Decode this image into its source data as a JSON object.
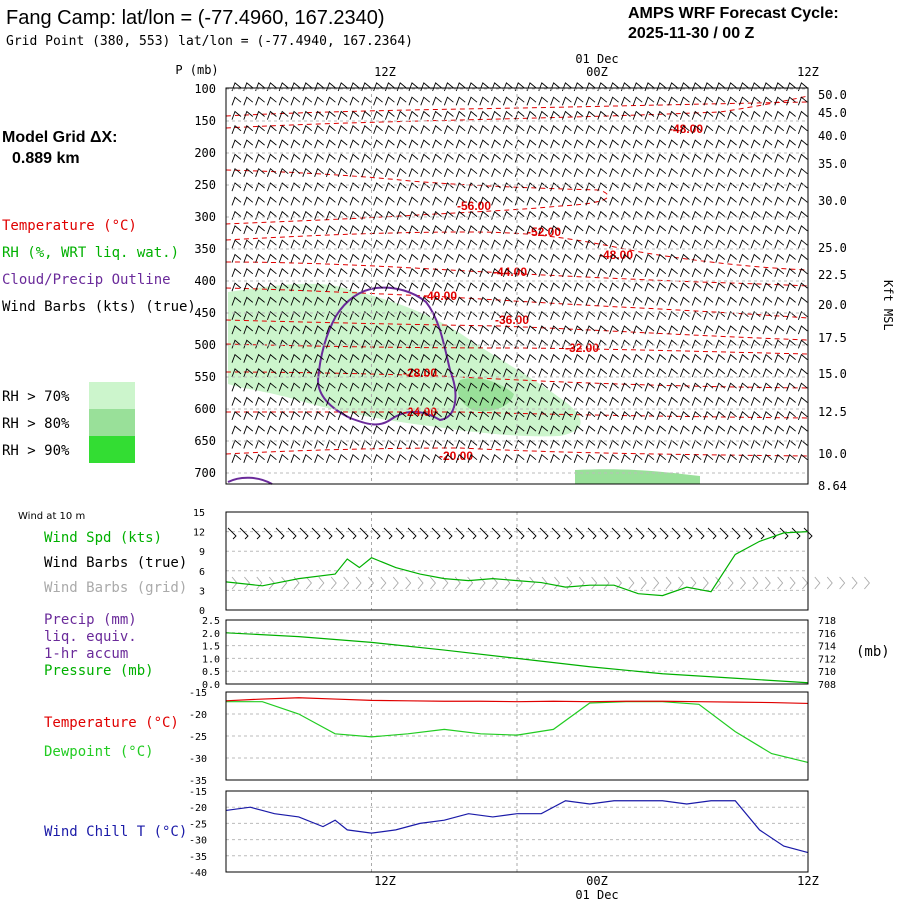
{
  "header": {
    "title": "Fang Camp:  lat/lon = (-77.4960, 167.2340)",
    "subtitle": "Grid Point (380, 553) lat/lon = (-77.4940, 167.2364)",
    "cycle_label": "AMPS WRF Forecast Cycle:",
    "cycle_value": "2025-11-30 / 00  Z",
    "grid_label": "Model Grid ΔX:",
    "grid_value": "0.889 km",
    "date_top": "01 Dec",
    "date_bottom": "01 Dec",
    "pressure_axis_label": "P (mb)",
    "height_axis_label": "Kft MSL"
  },
  "colors": {
    "temperature": "#e00000",
    "rh": "#00b000",
    "cloud": "#6a2a9a",
    "wind": "#000000",
    "wind_grid": "#aaaaaa",
    "precip": "#6a2a9a",
    "pressure": "#00b000",
    "dewpoint": "#22cc22",
    "windchill": "#1a1aa8",
    "rh70": "#ccf5cc",
    "rh80": "#99e099",
    "rh90": "#33dd33"
  },
  "legend": {
    "temperature": "Temperature (°C)",
    "rh": "RH (%, WRT liq. wat.)",
    "cloud": "Cloud/Precip Outline",
    "wind": "Wind Barbs (kts) (true)",
    "rh70": "RH > 70%",
    "rh80": "RH > 80%",
    "rh90": "RH > 90%"
  },
  "chart_data": [
    {
      "type": "line",
      "panel": "vertical cross-section (time-height)",
      "x_ticks": [
        "12Z",
        "00Z",
        "12Z"
      ],
      "pressure_ticks": [
        100,
        150,
        200,
        250,
        300,
        350,
        400,
        450,
        500,
        550,
        600,
        650,
        700
      ],
      "height_ticks": [
        "50.0",
        "45.0",
        "40.0",
        "35.0",
        "30.0",
        "25.0",
        "22.5",
        "20.0",
        "17.5",
        "15.0",
        "12.5",
        "10.0",
        "8.64"
      ],
      "temperature_contour_labels": [
        "-48.00",
        "-56.00",
        "-52.00",
        "-48.00",
        "-44.00",
        "-40.00",
        "-36.00",
        "-32.00",
        "-28.00",
        "-24.00",
        "-20.00"
      ]
    },
    {
      "type": "line",
      "title": "Wind at 10 m",
      "labels": {
        "speed": "Wind Spd (kts)",
        "barbs": "Wind Barbs (true)",
        "barbs_grid": "Wind Barbs (grid)"
      },
      "y_ticks": [
        "15",
        "12",
        "9",
        "6",
        "3",
        "0"
      ],
      "ylim": [
        0,
        15
      ],
      "x_hours": [
        0,
        3,
        6,
        9,
        10,
        11,
        12,
        14,
        16,
        18,
        20,
        22,
        24,
        26,
        28,
        30,
        32,
        34,
        36,
        38,
        40,
        42,
        44,
        46,
        48
      ],
      "series": [
        {
          "name": "Wind Spd (kts)",
          "values": [
            4.3,
            3.7,
            4.8,
            5.5,
            7.8,
            6.5,
            8.0,
            6.5,
            5.5,
            4.8,
            4.5,
            4.8,
            4.5,
            4.2,
            3.5,
            3.8,
            3.8,
            2.5,
            2.2,
            3.5,
            2.8,
            8.5,
            10.5,
            11.8,
            12.0
          ]
        }
      ]
    },
    {
      "type": "line",
      "labels": {
        "precip1": "Precip (mm)",
        "precip2": "liq. equiv.",
        "precip3": "1-hr accum",
        "pressure": "Pressure (mb)",
        "pressure_unit": "(mb)"
      },
      "precip_ticks": [
        "2.5",
        "2.0",
        "1.5",
        "1.0",
        "0.5",
        "0.0"
      ],
      "pressure_ticks": [
        "718",
        "716",
        "714",
        "712",
        "710",
        "708"
      ],
      "x_hours": [
        0,
        6,
        12,
        18,
        24,
        30,
        36,
        42,
        48
      ],
      "series": [
        {
          "name": "Pressure (mb)",
          "values": [
            716.0,
            715.4,
            714.5,
            713.3,
            712.0,
            710.7,
            709.6,
            708.9,
            708.2
          ]
        },
        {
          "name": "Precip (mm)",
          "values": [
            0,
            0,
            0,
            0,
            0,
            0,
            0,
            0,
            0
          ]
        }
      ]
    },
    {
      "type": "line",
      "labels": {
        "temperature": "Temperature (°C)",
        "dewpoint": "Dewpoint (°C)"
      },
      "y_ticks": [
        "-15",
        "-20",
        "-25",
        "-30",
        "-35"
      ],
      "ylim": [
        -35,
        -15
      ],
      "x_hours": [
        0,
        3,
        6,
        9,
        12,
        15,
        18,
        21,
        24,
        27,
        30,
        33,
        36,
        39,
        42,
        45,
        48
      ],
      "series": [
        {
          "name": "Temperature (°C)",
          "values": [
            -17.0,
            -16.6,
            -16.3,
            -16.6,
            -16.9,
            -17.0,
            -17.1,
            -17.1,
            -17.2,
            -17.1,
            -17.2,
            -17.1,
            -17.1,
            -17.2,
            -17.3,
            -17.4,
            -17.6
          ]
        },
        {
          "name": "Dewpoint (°C)",
          "values": [
            -17.2,
            -17.2,
            -20.0,
            -24.5,
            -25.2,
            -24.5,
            -23.5,
            -24.5,
            -24.8,
            -23.5,
            -17.5,
            -17.2,
            -17.2,
            -17.8,
            -24.0,
            -29.0,
            -31.0
          ]
        }
      ]
    },
    {
      "type": "line",
      "labels": {
        "windchill": "Wind Chill T (°C)"
      },
      "y_ticks": [
        "-15",
        "-20",
        "-25",
        "-30",
        "-35",
        "-40"
      ],
      "ylim": [
        -40,
        -15
      ],
      "x_hours": [
        0,
        2,
        3,
        4,
        6,
        8,
        9,
        10,
        12,
        14,
        16,
        18,
        20,
        22,
        24,
        26,
        28,
        30,
        32,
        34,
        36,
        38,
        40,
        42,
        44,
        46,
        48
      ],
      "series": [
        {
          "name": "Wind Chill T (°C)",
          "values": [
            -21,
            -20,
            -21,
            -22,
            -23,
            -26,
            -24,
            -27,
            -28,
            -27,
            -25,
            -24,
            -22,
            -23,
            -22,
            -22,
            -18,
            -19,
            -18,
            -18,
            -18,
            -19,
            -18,
            -18,
            -27,
            -32,
            -34
          ]
        }
      ]
    }
  ]
}
